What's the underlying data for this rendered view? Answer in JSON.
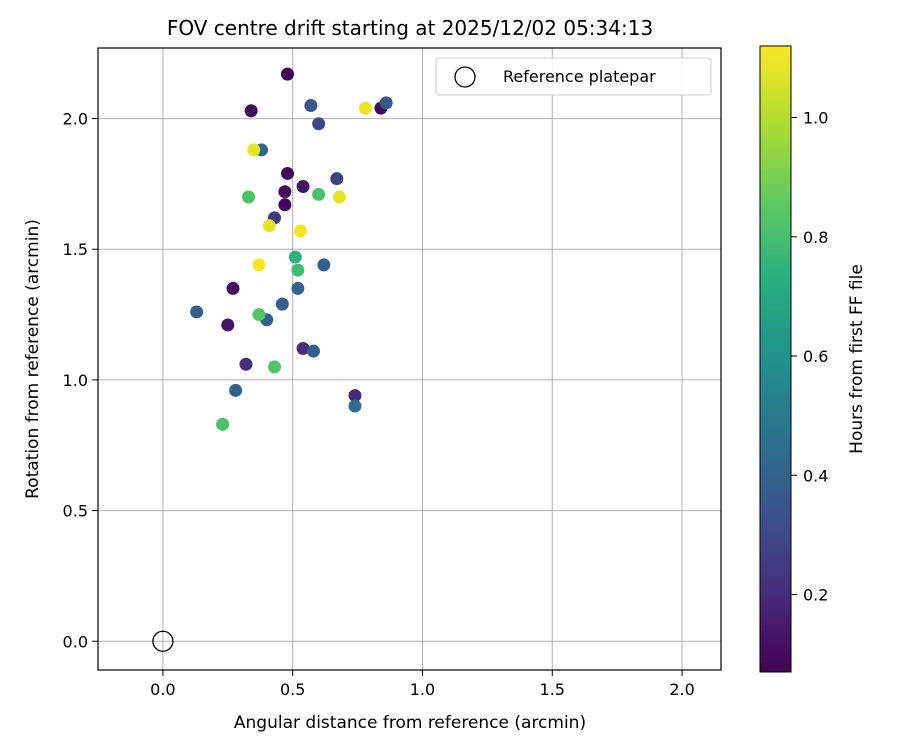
{
  "chart_data": {
    "type": "scatter",
    "title": "FOV centre drift starting at 2025/12/02 05:34:13",
    "xlabel": "Angular distance from reference (arcmin)",
    "ylabel": "Rotation from reference (arcmin)",
    "xlim": [
      -0.25,
      2.15
    ],
    "ylim": [
      -0.11,
      2.27
    ],
    "x_ticks": [
      0.0,
      0.5,
      1.0,
      1.5,
      2.0
    ],
    "x_tick_labels": [
      "0.0",
      "0.5",
      "1.0",
      "1.5",
      "2.0"
    ],
    "y_ticks": [
      0.0,
      0.5,
      1.0,
      1.5,
      2.0
    ],
    "y_tick_labels": [
      "0.0",
      "0.5",
      "1.0",
      "1.5",
      "2.0"
    ],
    "grid": true,
    "legend_position": "top-right",
    "colormap": "viridis",
    "colorbar": {
      "label": "Hours from first FF file",
      "range": [
        0.07,
        1.12
      ],
      "ticks": [
        0.2,
        0.4,
        0.6,
        0.8,
        1.0
      ],
      "tick_labels": [
        "0.2",
        "0.4",
        "0.6",
        "0.8",
        "1.0"
      ]
    },
    "reference": {
      "name": "Reference platepar",
      "x": 0.0,
      "y": 0.0
    },
    "points": [
      {
        "x": 0.48,
        "y": 2.17,
        "t": 0.08
      },
      {
        "x": 0.34,
        "y": 2.03,
        "t": 0.09
      },
      {
        "x": 0.84,
        "y": 2.04,
        "t": 0.1
      },
      {
        "x": 0.48,
        "y": 1.79,
        "t": 0.09
      },
      {
        "x": 0.47,
        "y": 1.72,
        "t": 0.1
      },
      {
        "x": 0.54,
        "y": 1.74,
        "t": 0.13
      },
      {
        "x": 0.47,
        "y": 1.67,
        "t": 0.09
      },
      {
        "x": 0.27,
        "y": 1.35,
        "t": 0.1
      },
      {
        "x": 0.25,
        "y": 1.21,
        "t": 0.13
      },
      {
        "x": 0.54,
        "y": 1.12,
        "t": 0.2
      },
      {
        "x": 0.32,
        "y": 1.06,
        "t": 0.21
      },
      {
        "x": 0.74,
        "y": 0.94,
        "t": 0.2
      },
      {
        "x": 0.43,
        "y": 1.62,
        "t": 0.24
      },
      {
        "x": 0.6,
        "y": 1.98,
        "t": 0.29
      },
      {
        "x": 0.67,
        "y": 1.77,
        "t": 0.28
      },
      {
        "x": 0.57,
        "y": 2.05,
        "t": 0.36
      },
      {
        "x": 0.86,
        "y": 2.06,
        "t": 0.36
      },
      {
        "x": 0.38,
        "y": 1.88,
        "t": 0.41
      },
      {
        "x": 0.13,
        "y": 1.26,
        "t": 0.38
      },
      {
        "x": 0.4,
        "y": 1.23,
        "t": 0.4
      },
      {
        "x": 0.46,
        "y": 1.29,
        "t": 0.39
      },
      {
        "x": 0.52,
        "y": 1.35,
        "t": 0.4
      },
      {
        "x": 0.62,
        "y": 1.44,
        "t": 0.4
      },
      {
        "x": 0.58,
        "y": 1.11,
        "t": 0.4
      },
      {
        "x": 0.28,
        "y": 0.96,
        "t": 0.4
      },
      {
        "x": 0.74,
        "y": 0.9,
        "t": 0.45
      },
      {
        "x": 0.51,
        "y": 1.47,
        "t": 0.75
      },
      {
        "x": 0.52,
        "y": 1.42,
        "t": 0.8
      },
      {
        "x": 0.33,
        "y": 1.7,
        "t": 0.82
      },
      {
        "x": 0.6,
        "y": 1.71,
        "t": 0.82
      },
      {
        "x": 0.37,
        "y": 1.25,
        "t": 0.84
      },
      {
        "x": 0.43,
        "y": 1.05,
        "t": 0.83
      },
      {
        "x": 0.23,
        "y": 0.83,
        "t": 0.82
      },
      {
        "x": 0.35,
        "y": 1.88,
        "t": 1.08
      },
      {
        "x": 0.78,
        "y": 2.04,
        "t": 1.09
      },
      {
        "x": 0.68,
        "y": 1.7,
        "t": 1.08
      },
      {
        "x": 0.41,
        "y": 1.59,
        "t": 1.08
      },
      {
        "x": 0.53,
        "y": 1.57,
        "t": 1.1
      },
      {
        "x": 0.37,
        "y": 1.44,
        "t": 1.11
      }
    ]
  }
}
